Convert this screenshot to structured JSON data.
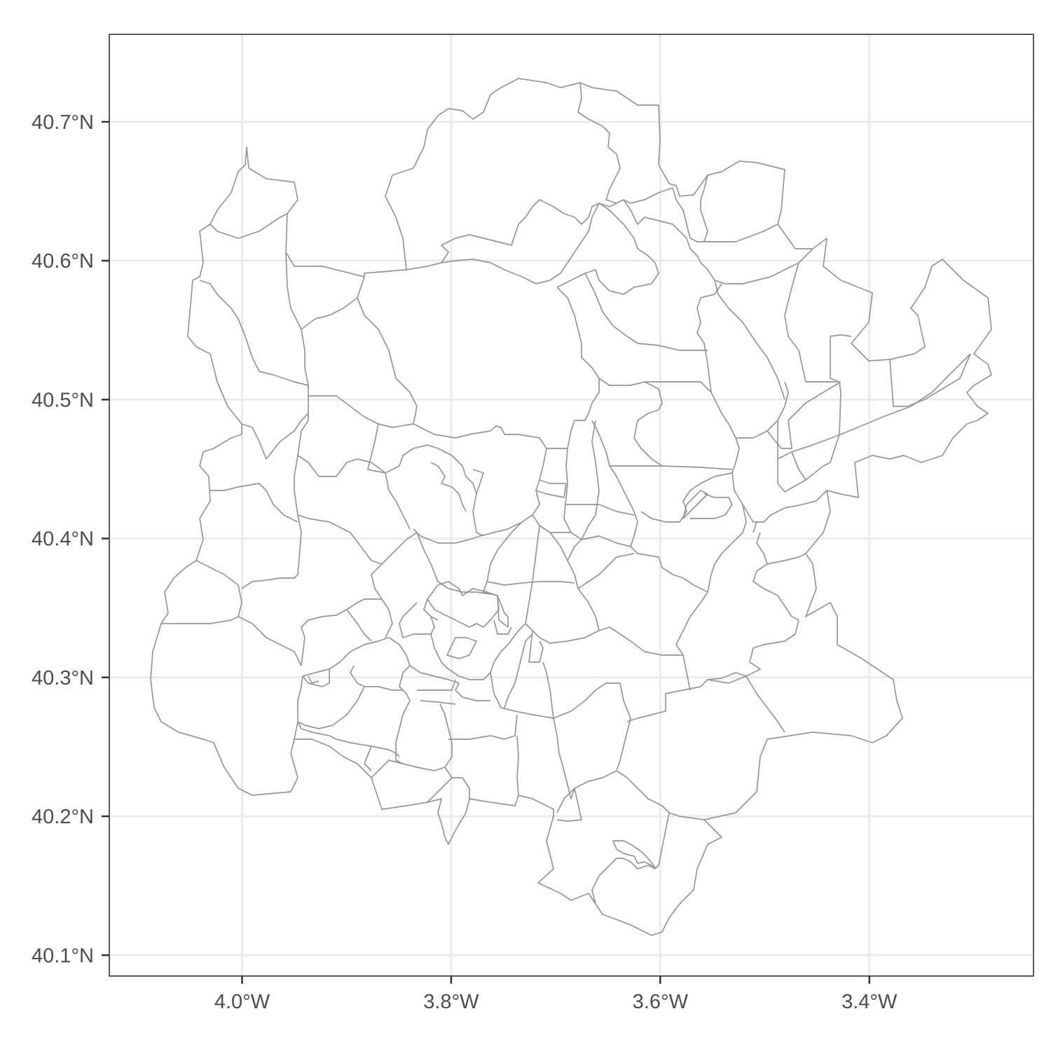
{
  "map": {
    "type": "choropleth-outline",
    "title": "",
    "xlabel": "",
    "ylabel": "",
    "x_axis": {
      "ticks": [
        -4.0,
        -3.8,
        -3.6,
        -3.4
      ],
      "tick_labels": [
        "4.0°W",
        "3.8°W",
        "3.6°W",
        "3.4°W"
      ],
      "range": [
        -4.127,
        -3.243
      ]
    },
    "y_axis": {
      "ticks": [
        40.1,
        40.2,
        40.3,
        40.4,
        40.5,
        40.6,
        40.7
      ],
      "tick_labels": [
        "40.1°N",
        "40.2°N",
        "40.3°N",
        "40.4°N",
        "40.5°N",
        "40.6°N",
        "40.7°N"
      ],
      "range": [
        40.085,
        40.763
      ]
    },
    "grid": true,
    "region_stroke_color": "#969696",
    "grid_color": "#ebebeb",
    "frame_color": "#333333"
  }
}
